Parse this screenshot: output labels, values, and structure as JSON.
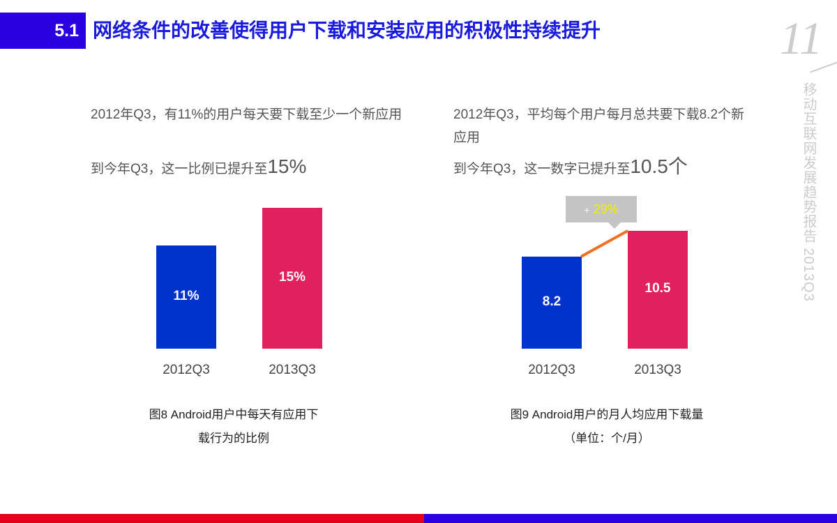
{
  "header": {
    "section": "5.1",
    "title": "网络条件的改善使得用户下载和安装应用的积极性持续提升",
    "page": "11",
    "side_text": "移动互联网发展趋势报告 2013Q3"
  },
  "left": {
    "line1": "2012年Q3，有11%的用户每天要下载至少一个新应用",
    "line2_prefix": "到今年Q3，这一比例已提升至",
    "line2_value": "15%",
    "caption1": "图8 Android用户中每天有应用下",
    "caption2": "载行为的比例"
  },
  "right": {
    "line1": "2012年Q3，平均每个用户每月总共要下载8.2个新应用",
    "line2_prefix": "到今年Q3，这一数字已提升至",
    "line2_value": "10.5个",
    "caption1": "图9 Android用户的月人均应用下载量",
    "caption2": "（单位：个/月）",
    "callout_plus": "+",
    "callout_value": "29%"
  },
  "chart_data": [
    {
      "type": "bar",
      "categories": [
        "2012Q3",
        "2013Q3"
      ],
      "values": [
        11,
        15
      ],
      "labels": [
        "11%",
        "15%"
      ],
      "colors": [
        "#0033cc",
        "#e0205f"
      ]
    },
    {
      "type": "bar",
      "categories": [
        "2012Q3",
        "2013Q3"
      ],
      "values": [
        8.2,
        10.5
      ],
      "labels": [
        "8.2",
        "10.5"
      ],
      "colors": [
        "#0033cc",
        "#e0205f"
      ],
      "annotation": "+29%",
      "annotation_color": "#f0f000",
      "line_color": "#f07020"
    }
  ]
}
